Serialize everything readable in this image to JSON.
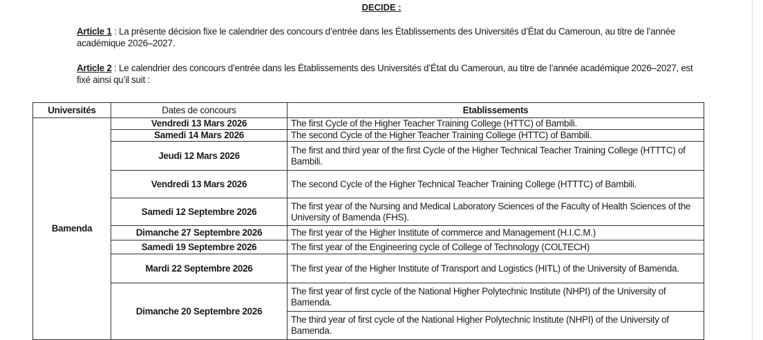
{
  "title": "DECIDE :",
  "articles": [
    {
      "label": "Article 1",
      "text": " : La présente décision fixe le calendrier des concours d’entrée dans les Établissements des Universités d’État du Cameroun, au titre de l’année académique 2026–2027."
    },
    {
      "label": "Article 2",
      "text": " : Le calendrier des concours d’entrée dans les Établissements des Universités d’État du Cameroun, au titre de l’année académique 2026–2027, est fixé ainsi qu’il suit :"
    }
  ],
  "table": {
    "headers": [
      "Universités",
      "Dates de concours",
      "Etablissements"
    ],
    "university": "Bamenda",
    "rows": [
      {
        "date": "Vendredi 13 Mars 2026",
        "establishments": [
          "The first Cycle of the Higher Teacher Training College (HTTC) of Bambili."
        ]
      },
      {
        "date": "Samedi 14 Mars 2026",
        "establishments": [
          "The second Cycle of the Higher Teacher Training College (HTTC) of Bambili."
        ]
      },
      {
        "date": "Jeudi 12 Mars 2026",
        "establishments": [
          "The first and third year of the first Cycle of the Higher Technical Teacher Training College (HTTTC) of Bambili."
        ]
      },
      {
        "date": "Vendredi 13 Mars 2026",
        "establishments": [
          "The second Cycle of the Higher Technical Teacher Training College (HTTTC) of Bambili."
        ]
      },
      {
        "date": "Samedi 12 Septembre 2026",
        "establishments": [
          "The first year of the Nursing and Medical Laboratory Sciences of the Faculty of Health Sciences of the University of Bamenda (FHS)."
        ]
      },
      {
        "date": "Dimanche 27 Septembre 2026",
        "establishments": [
          "The first year of the Higher Institute of commerce and Management (H.I.C.M.)"
        ]
      },
      {
        "date": "Samedi 19 Septembre 2026",
        "establishments": [
          "The first year of the Engineering cycle of College of Technology (COLTECH)"
        ]
      },
      {
        "date": "Mardi 22 Septembre 2026",
        "establishments": [
          "The first year of the Higher Institute of Transport and Logistics (HITL) of the University of Bamenda."
        ]
      },
      {
        "date": "Dimanche 20 Septembre 2026",
        "establishments": [
          "The first year of first cycle of the National Higher Polytechnic Institute (NHPI) of the University of Bamenda.",
          "The third year of first cycle of the National Higher Polytechnic Institute (NHPI) of the University of Bamenda."
        ]
      }
    ]
  }
}
